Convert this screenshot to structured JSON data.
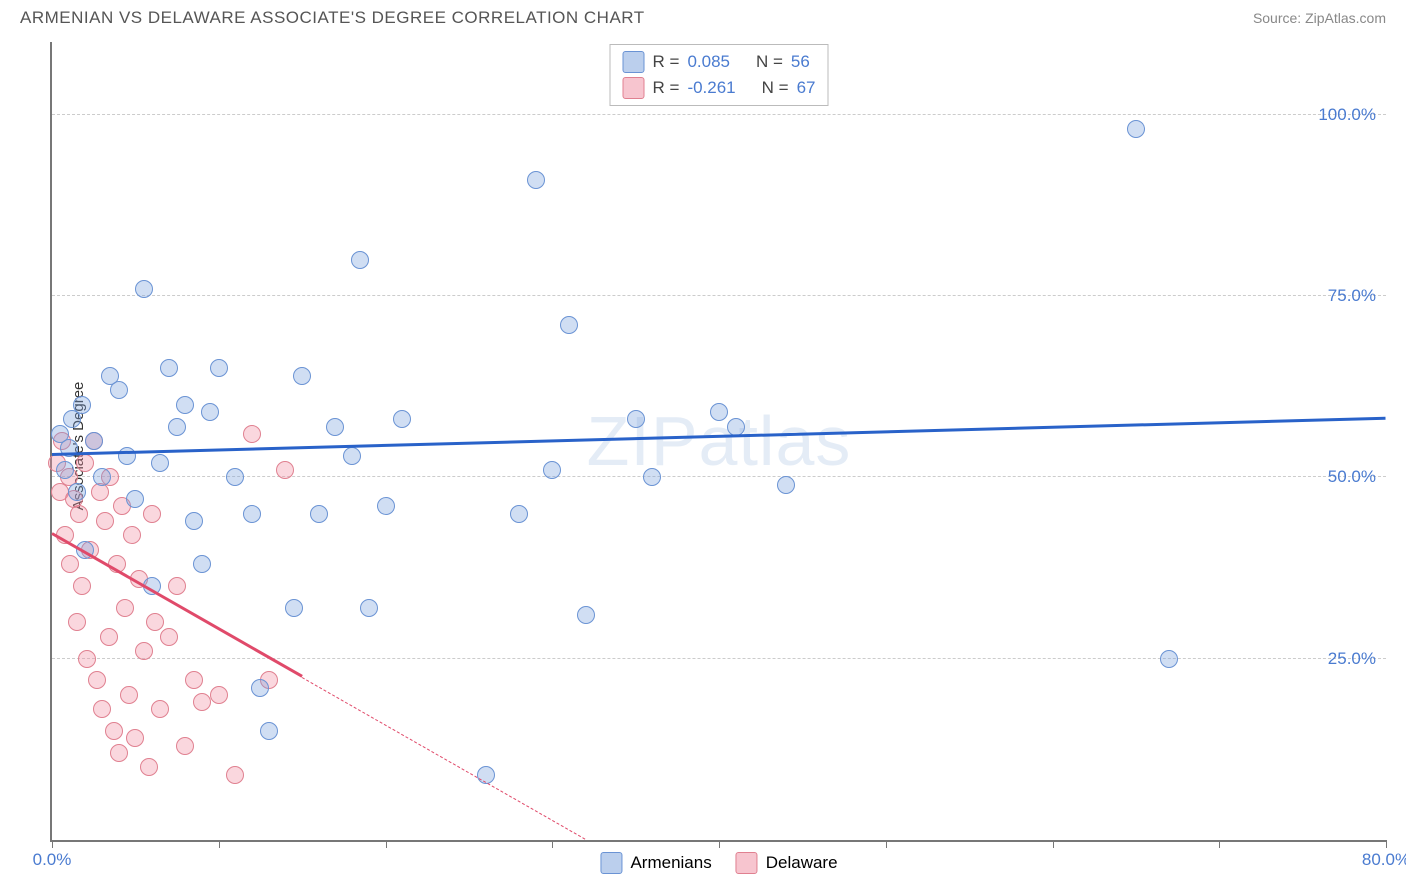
{
  "title": "ARMENIAN VS DELAWARE ASSOCIATE'S DEGREE CORRELATION CHART",
  "source": "Source: ZipAtlas.com",
  "ylabel": "Associate's Degree",
  "watermark": "ZIPatlas",
  "chart": {
    "type": "scatter",
    "background_color": "#ffffff",
    "grid_color": "#cccccc",
    "axis_color": "#777777",
    "xlim": [
      0,
      80
    ],
    "ylim": [
      0,
      110
    ],
    "xtick_positions": [
      0,
      10,
      20,
      30,
      40,
      50,
      60,
      70,
      80
    ],
    "xtick_labels": {
      "0": "0.0%",
      "80": "80.0%"
    },
    "ytick_positions": [
      25,
      50,
      75,
      100
    ],
    "ytick_labels": {
      "25": "25.0%",
      "50": "50.0%",
      "75": "75.0%",
      "100": "100.0%"
    },
    "marker_size": 18,
    "line_width": 3,
    "tick_label_color": "#4a7bd0",
    "tick_label_fontsize": 17,
    "title_fontsize": 17,
    "title_color": "#555555"
  },
  "series": {
    "armenians": {
      "label": "Armenians",
      "color_fill": "rgba(120,160,220,0.35)",
      "color_stroke": "#6a93d4",
      "trend_color": "#2962c9",
      "R": "0.085",
      "N": "56",
      "trend": {
        "x1": 0,
        "y1": 53,
        "x2": 80,
        "y2": 58
      },
      "points": [
        [
          0.5,
          56
        ],
        [
          0.8,
          51
        ],
        [
          1,
          54
        ],
        [
          1.2,
          58
        ],
        [
          1.5,
          48
        ],
        [
          1.8,
          60
        ],
        [
          2,
          40
        ],
        [
          2.5,
          55
        ],
        [
          3,
          50
        ],
        [
          3.5,
          64
        ],
        [
          4,
          62
        ],
        [
          4.5,
          53
        ],
        [
          5,
          47
        ],
        [
          5.5,
          76
        ],
        [
          6,
          35
        ],
        [
          6.5,
          52
        ],
        [
          7,
          65
        ],
        [
          7.5,
          57
        ],
        [
          8,
          60
        ],
        [
          8.5,
          44
        ],
        [
          9,
          38
        ],
        [
          9.5,
          59
        ],
        [
          10,
          65
        ],
        [
          11,
          50
        ],
        [
          12,
          45
        ],
        [
          12.5,
          21
        ],
        [
          13,
          15
        ],
        [
          14.5,
          32
        ],
        [
          15,
          64
        ],
        [
          16,
          45
        ],
        [
          17,
          57
        ],
        [
          18,
          53
        ],
        [
          18.5,
          80
        ],
        [
          19,
          32
        ],
        [
          20,
          46
        ],
        [
          21,
          58
        ],
        [
          26,
          9
        ],
        [
          28,
          45
        ],
        [
          29,
          91
        ],
        [
          30,
          51
        ],
        [
          31,
          71
        ],
        [
          32,
          31
        ],
        [
          35,
          58
        ],
        [
          36,
          50
        ],
        [
          40,
          59
        ],
        [
          41,
          57
        ],
        [
          44,
          49
        ],
        [
          65,
          98
        ],
        [
          67,
          25
        ]
      ]
    },
    "delaware": {
      "label": "Delaware",
      "color_fill": "rgba(240,140,160,0.35)",
      "color_stroke": "#e08090",
      "trend_color": "#e04a6a",
      "R": "-0.261",
      "N": "67",
      "trend": {
        "x1": 0,
        "y1": 42,
        "x2": 32,
        "y2": 0
      },
      "trend_solid_end": 15,
      "points": [
        [
          0.3,
          52
        ],
        [
          0.5,
          48
        ],
        [
          0.6,
          55
        ],
        [
          0.8,
          42
        ],
        [
          1,
          50
        ],
        [
          1.1,
          38
        ],
        [
          1.3,
          47
        ],
        [
          1.5,
          30
        ],
        [
          1.6,
          45
        ],
        [
          1.8,
          35
        ],
        [
          2,
          52
        ],
        [
          2.1,
          25
        ],
        [
          2.3,
          40
        ],
        [
          2.5,
          55
        ],
        [
          2.7,
          22
        ],
        [
          2.9,
          48
        ],
        [
          3,
          18
        ],
        [
          3.2,
          44
        ],
        [
          3.4,
          28
        ],
        [
          3.5,
          50
        ],
        [
          3.7,
          15
        ],
        [
          3.9,
          38
        ],
        [
          4,
          12
        ],
        [
          4.2,
          46
        ],
        [
          4.4,
          32
        ],
        [
          4.6,
          20
        ],
        [
          4.8,
          42
        ],
        [
          5,
          14
        ],
        [
          5.2,
          36
        ],
        [
          5.5,
          26
        ],
        [
          5.8,
          10
        ],
        [
          6,
          45
        ],
        [
          6.2,
          30
        ],
        [
          6.5,
          18
        ],
        [
          7,
          28
        ],
        [
          7.5,
          35
        ],
        [
          8,
          13
        ],
        [
          8.5,
          22
        ],
        [
          9,
          19
        ],
        [
          10,
          20
        ],
        [
          11,
          9
        ],
        [
          12,
          56
        ],
        [
          13,
          22
        ],
        [
          14,
          51
        ]
      ]
    }
  },
  "legend_top": {
    "r_label": "R =",
    "n_label": "N ="
  },
  "legend_bottom": {
    "armenians": "Armenians",
    "delaware": "Delaware"
  }
}
